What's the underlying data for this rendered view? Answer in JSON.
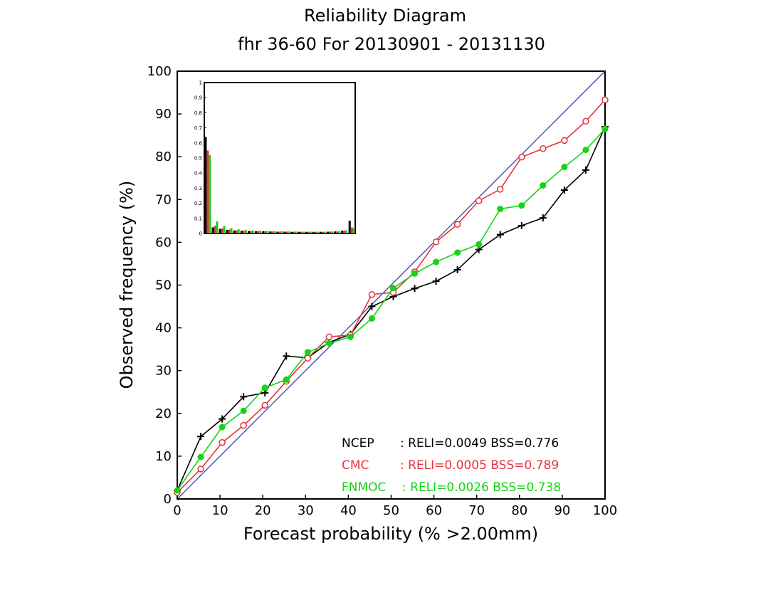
{
  "chart_data": {
    "type": "line",
    "title": "Reliability Diagram",
    "subtitle": "fhr 36-60 For 20130901 - 20131130",
    "xlabel": "Forecast probability (% >2.00mm)",
    "ylabel": "Observed frequency (%)",
    "xlim": [
      0,
      100
    ],
    "ylim": [
      0,
      100
    ],
    "x_ticks": [
      "0",
      "10",
      "20",
      "30",
      "40",
      "50",
      "60",
      "70",
      "80",
      "90",
      "100"
    ],
    "y_ticks": [
      "0",
      "10",
      "20",
      "30",
      "40",
      "50",
      "60",
      "70",
      "80",
      "90",
      "100"
    ],
    "grid": false,
    "legend_position": "bottom-right",
    "diagonal_color": "#2a3fbf",
    "series": [
      {
        "name": "NCEP",
        "color": "#000000",
        "marker": "plus",
        "legend_text": ": RELI=0.0049  BSS=0.776",
        "x": [
          0,
          5.5,
          10.5,
          15.5,
          20.5,
          25.5,
          30.5,
          35.5,
          40.5,
          45.5,
          50.5,
          55.5,
          60.5,
          65.5,
          70.5,
          75.5,
          80.5,
          85.5,
          90.5,
          95.5,
          100
        ],
        "y": [
          2.0,
          14.6,
          18.7,
          23.9,
          24.8,
          33.4,
          33.0,
          36.6,
          38.5,
          45.0,
          47.3,
          49.2,
          50.9,
          53.6,
          58.3,
          61.8,
          63.9,
          65.7,
          72.2,
          76.9,
          87.0
        ]
      },
      {
        "name": "CMC",
        "color": "#e8323c",
        "marker": "open-circle",
        "legend_text": ": RELI=0.0005  BSS=0.789",
        "x": [
          0,
          5.5,
          10.5,
          15.5,
          20.5,
          25.5,
          30.5,
          35.5,
          40.5,
          45.5,
          50.5,
          55.5,
          60.5,
          65.5,
          70.5,
          75.5,
          80.5,
          85.5,
          90.5,
          95.5,
          100
        ],
        "y": [
          1.5,
          7.0,
          13.2,
          17.2,
          21.9,
          27.5,
          32.9,
          37.9,
          38.3,
          47.8,
          48.3,
          53.1,
          60.1,
          64.2,
          69.7,
          72.4,
          79.9,
          81.9,
          83.8,
          88.3,
          93.3
        ]
      },
      {
        "name": "FNMOC",
        "color": "#14d414",
        "marker": "filled-circle",
        "legend_text": ": RELI=0.0026  BSS=0.738",
        "x": [
          0,
          5.5,
          10.5,
          15.5,
          20.5,
          25.5,
          30.5,
          35.5,
          40.5,
          45.5,
          50.5,
          55.5,
          60.5,
          65.5,
          70.5,
          75.5,
          80.5,
          85.5,
          90.5,
          95.5,
          100
        ],
        "y": [
          2.0,
          9.8,
          16.8,
          20.6,
          26.0,
          27.9,
          34.3,
          36.4,
          37.9,
          42.2,
          49.3,
          52.7,
          55.4,
          57.6,
          59.5,
          67.8,
          68.6,
          73.3,
          77.6,
          81.6,
          86.5
        ]
      }
    ],
    "inset": {
      "type": "bar",
      "description": "Forecast frequency histogram",
      "ylim": [
        0,
        1
      ],
      "y_ticks": [
        "0",
        "0.1",
        "0.2",
        "0.3",
        "0.4",
        "0.5",
        "0.6",
        "0.7",
        "0.8",
        "0.9",
        "1"
      ],
      "bins": 21,
      "series": [
        {
          "name": "NCEP",
          "color": "#000000",
          "values": [
            0.64,
            0.04,
            0.03,
            0.024,
            0.02,
            0.018,
            0.016,
            0.015,
            0.014,
            0.013,
            0.012,
            0.012,
            0.011,
            0.011,
            0.011,
            0.011,
            0.011,
            0.012,
            0.013,
            0.018,
            0.085
          ]
        },
        {
          "name": "CMC",
          "color": "#e8323c",
          "values": [
            0.55,
            0.05,
            0.034,
            0.026,
            0.021,
            0.018,
            0.016,
            0.015,
            0.014,
            0.013,
            0.012,
            0.012,
            0.011,
            0.011,
            0.011,
            0.011,
            0.011,
            0.012,
            0.013,
            0.02,
            0.04
          ]
        },
        {
          "name": "FNMOC",
          "color": "#14d414",
          "values": [
            0.52,
            0.08,
            0.05,
            0.035,
            0.028,
            0.024,
            0.02,
            0.018,
            0.016,
            0.015,
            0.014,
            0.013,
            0.013,
            0.012,
            0.012,
            0.012,
            0.012,
            0.013,
            0.014,
            0.02,
            0.035
          ]
        }
      ]
    }
  }
}
